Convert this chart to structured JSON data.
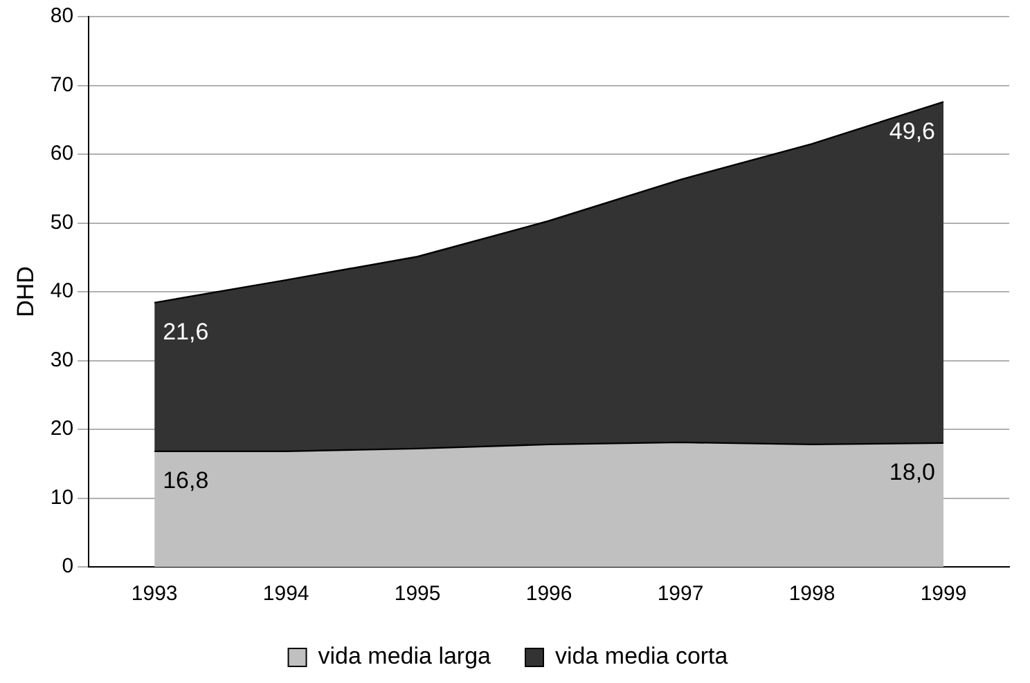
{
  "chart_data": {
    "type": "area",
    "ylabel": "DHD",
    "categories": [
      "1993",
      "1994",
      "1995",
      "1996",
      "1997",
      "1998",
      "1999"
    ],
    "stacked": true,
    "ylim": [
      0,
      80
    ],
    "yticks": [
      0,
      10,
      20,
      30,
      40,
      50,
      60,
      70,
      80
    ],
    "grid": "y",
    "legend": "bottom",
    "series": [
      {
        "name": "vida media larga",
        "color": "#c0c0c0",
        "values": [
          16.8,
          16.8,
          17.2,
          17.8,
          18.1,
          17.8,
          18.0
        ],
        "value_labels": [
          "16,8",
          null,
          null,
          null,
          null,
          null,
          "18,0"
        ]
      },
      {
        "name": "vida media corta",
        "color": "#333333",
        "values": [
          21.6,
          24.9,
          27.9,
          32.5,
          38.2,
          43.7,
          49.6
        ],
        "value_labels": [
          "21,6",
          null,
          null,
          null,
          null,
          null,
          "49,6"
        ]
      }
    ]
  }
}
